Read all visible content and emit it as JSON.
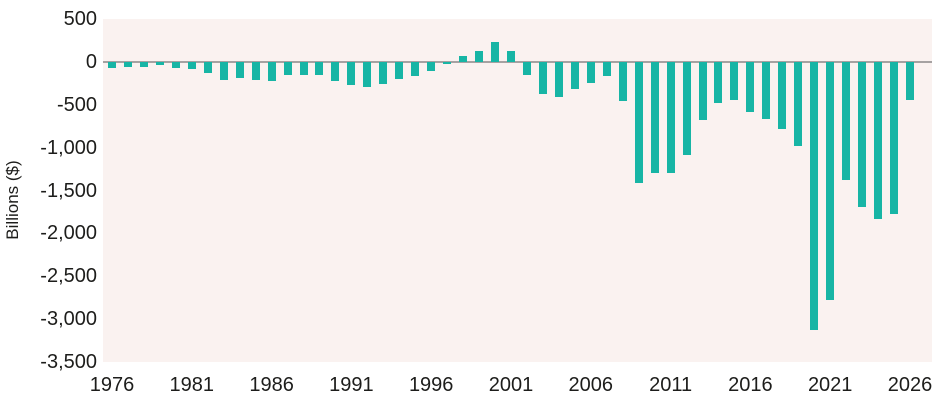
{
  "chart_data": {
    "type": "bar",
    "title": "",
    "xlabel": "",
    "ylabel": "Billions ($)",
    "ylim": [
      -3500,
      500
    ],
    "grid": false,
    "legend_position": "none",
    "y_ticks": [
      {
        "value": 500,
        "label": "500"
      },
      {
        "value": 0,
        "label": "0"
      },
      {
        "value": -500,
        "label": "-500"
      },
      {
        "value": -1000,
        "label": "-1,000"
      },
      {
        "value": -1500,
        "label": "-1,500"
      },
      {
        "value": -2000,
        "label": "-2,000"
      },
      {
        "value": -2500,
        "label": "-2,500"
      },
      {
        "value": -3000,
        "label": "-3,000"
      },
      {
        "value": -3500,
        "label": "-3,500"
      }
    ],
    "x_ticks": [
      1976,
      1981,
      1986,
      1991,
      1996,
      2001,
      2006,
      2011,
      2016,
      2021,
      2026
    ],
    "categories": [
      1976,
      1977,
      1978,
      1979,
      1980,
      1981,
      1982,
      1983,
      1984,
      1985,
      1986,
      1987,
      1988,
      1989,
      1990,
      1991,
      1992,
      1993,
      1994,
      1995,
      1996,
      1997,
      1998,
      1999,
      2000,
      2001,
      2002,
      2003,
      2004,
      2005,
      2006,
      2007,
      2008,
      2009,
      2010,
      2011,
      2012,
      2013,
      2014,
      2015,
      2016,
      2017,
      2018,
      2019,
      2020,
      2021,
      2022,
      2023,
      2024,
      2025,
      2026
    ],
    "values": [
      -74,
      -54,
      -59,
      -41,
      -74,
      -79,
      -128,
      -208,
      -185,
      -212,
      -221,
      -150,
      -155,
      -153,
      -221,
      -269,
      -290,
      -255,
      -203,
      -164,
      -107,
      -22,
      69,
      126,
      236,
      128,
      -158,
      -378,
      -413,
      -318,
      -248,
      -161,
      -459,
      -1413,
      -1294,
      -1300,
      -1087,
      -679,
      -485,
      -442,
      -585,
      -665,
      -779,
      -984,
      -3132,
      -2772,
      -1375,
      -1694,
      -1833,
      -1775,
      -450
    ],
    "colors": {
      "bar": "#17b5a5",
      "plot_background": "#faf2f0",
      "page_background": "#ffffff",
      "zero_line": "#a6a2a2",
      "text": "#1d1d1b"
    }
  }
}
